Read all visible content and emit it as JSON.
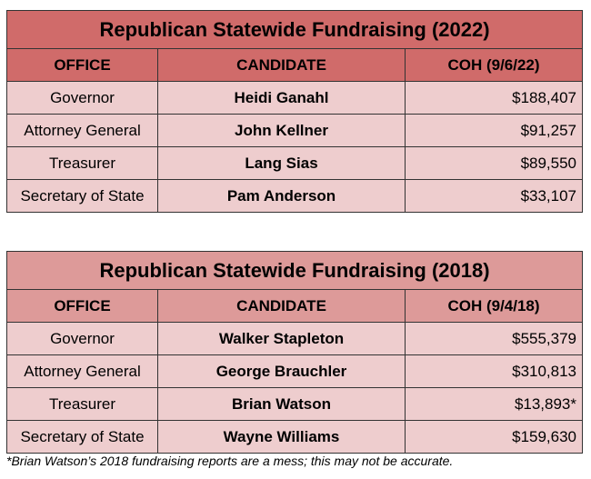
{
  "tables": [
    {
      "title": "Republican Statewide Fundraising (2022)",
      "headers": [
        "OFFICE",
        "CANDIDATE",
        "COH (9/6/22)"
      ],
      "rows": [
        [
          "Governor",
          "Heidi Ganahl",
          "$188,407"
        ],
        [
          "Attorney General",
          "John Kellner",
          "$91,257"
        ],
        [
          "Treasurer",
          "Lang Sias",
          "$89,550"
        ],
        [
          "Secretary of State",
          "Pam Anderson",
          "$33,107"
        ]
      ]
    },
    {
      "title": "Republican Statewide Fundraising (2018)",
      "headers": [
        "OFFICE",
        "CANDIDATE",
        "COH (9/4/18)"
      ],
      "rows": [
        [
          "Governor",
          "Walker Stapleton",
          "$555,379"
        ],
        [
          "Attorney General",
          "George Brauchler",
          "$310,813"
        ],
        [
          "Treasurer",
          "Brian Watson",
          "$13,893*"
        ],
        [
          "Secretary of State",
          "Wayne Williams",
          "$159,630"
        ]
      ]
    }
  ],
  "footnote": "*Brian Watson’s 2018 fundraising reports are a mess; this may not be accurate.",
  "colors": {
    "header_2022": "#d06b6a",
    "header_2018": "#dd9a99",
    "row": "#eecdce"
  }
}
